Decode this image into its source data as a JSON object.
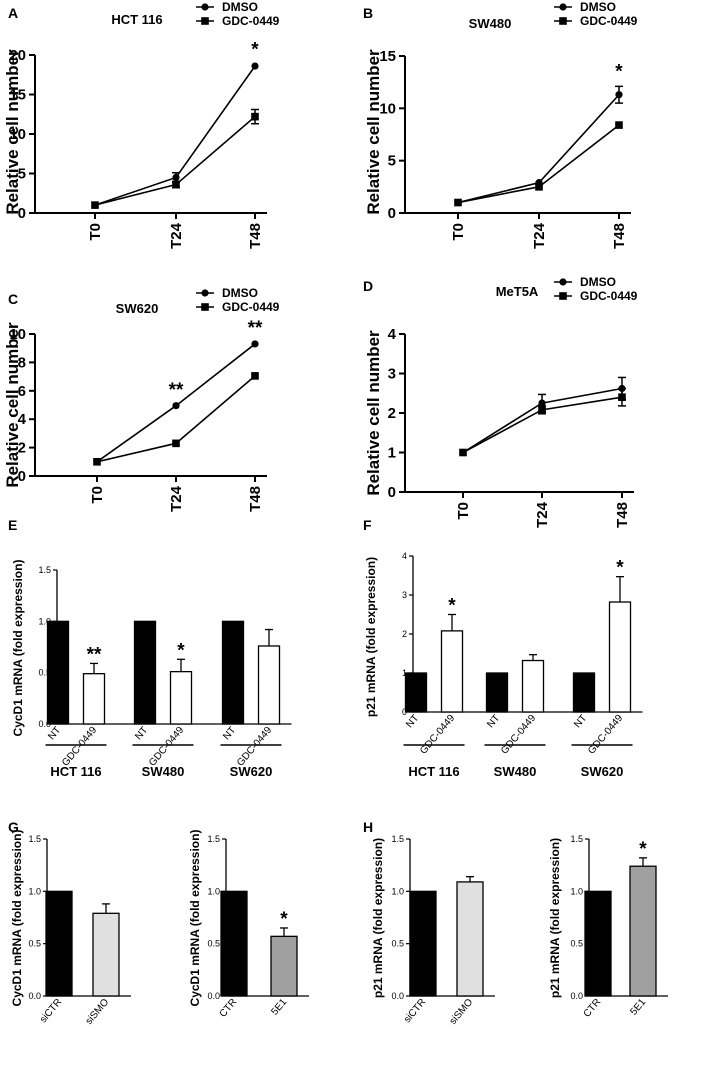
{
  "panels": [
    {
      "id": "A",
      "panel_label": "A",
      "chart_data": {
        "type": "line",
        "title": "HCT 116",
        "xlabel": "",
        "ylabel": "Relative cell number",
        "categories": [
          "T0",
          "T24",
          "T48"
        ],
        "ylim": [
          0,
          20
        ],
        "yticks": [
          "0",
          "5",
          "10",
          "15",
          "20"
        ],
        "series": [
          {
            "name": "DMSO",
            "marker": "circle",
            "values": [
              1,
              4.5,
              18.6
            ],
            "errors": [
              0.1,
              0.6,
              0.2
            ]
          },
          {
            "name": "GDC-0449",
            "marker": "square",
            "values": [
              1,
              3.6,
              12.2
            ],
            "errors": [
              0.1,
              0.4,
              0.9
            ]
          }
        ],
        "annotations": [
          {
            "category": "T48",
            "text": "*"
          }
        ]
      }
    },
    {
      "id": "B",
      "panel_label": "B",
      "chart_data": {
        "type": "line",
        "title": "SW480",
        "xlabel": "",
        "ylabel": "Relative cell number",
        "categories": [
          "T0",
          "T24",
          "T48"
        ],
        "ylim": [
          0,
          15
        ],
        "yticks": [
          "0",
          "5",
          "10",
          "15"
        ],
        "series": [
          {
            "name": "DMSO",
            "marker": "circle",
            "values": [
              1,
              2.9,
              11.3
            ],
            "errors": [
              0.05,
              0.15,
              0.8
            ]
          },
          {
            "name": "GDC-0449",
            "marker": "square",
            "values": [
              1,
              2.5,
              8.4
            ],
            "errors": [
              0.05,
              0.15,
              0.15
            ]
          }
        ],
        "annotations": [
          {
            "category": "T48",
            "text": "*"
          }
        ]
      }
    },
    {
      "id": "C",
      "panel_label": "C",
      "chart_data": {
        "type": "line",
        "title": "SW620",
        "xlabel": "",
        "ylabel": "Relative cell number",
        "categories": [
          "T0",
          "T24",
          "T48"
        ],
        "ylim": [
          0,
          10
        ],
        "yticks": [
          "0",
          "2",
          "4",
          "6",
          "8",
          "10"
        ],
        "series": [
          {
            "name": "DMSO",
            "marker": "circle",
            "values": [
              1,
              4.95,
              9.3
            ],
            "errors": [
              0.05,
              0.05,
              0.05
            ]
          },
          {
            "name": "GDC-0449",
            "marker": "square",
            "values": [
              1,
              2.3,
              7.05
            ],
            "errors": [
              0.05,
              0.05,
              0.05
            ]
          }
        ],
        "annotations": [
          {
            "category": "T24",
            "text": "**"
          },
          {
            "category": "T48",
            "text": "**"
          }
        ]
      }
    },
    {
      "id": "D",
      "panel_label": "D",
      "chart_data": {
        "type": "line",
        "title": "MeT5A",
        "xlabel": "",
        "ylabel": "Relative cell number",
        "categories": [
          "T0",
          "T24",
          "T48"
        ],
        "ylim": [
          0,
          4
        ],
        "yticks": [
          "0",
          "1",
          "2",
          "3",
          "4"
        ],
        "series": [
          {
            "name": "DMSO",
            "marker": "circle",
            "values": [
              1,
              2.25,
              2.62
            ],
            "errors": [
              0.03,
              0.22,
              0.28
            ]
          },
          {
            "name": "GDC-0449",
            "marker": "square",
            "values": [
              1,
              2.08,
              2.4
            ],
            "errors": [
              0.03,
              0.1,
              0.22
            ]
          }
        ],
        "annotations": []
      }
    },
    {
      "id": "E",
      "panel_label": "E",
      "chart_data": {
        "type": "bar",
        "title": "",
        "xlabel": "",
        "ylabel": "CycD1 mRNA (fold expression)",
        "ylim": [
          0,
          1.5
        ],
        "yticks": [
          "0.0",
          "0.5",
          "1.0",
          "1.5"
        ],
        "groups": [
          {
            "name": "HCT 116",
            "bars": [
              {
                "label": "NT",
                "value": 1.0,
                "error": 0,
                "fill": "#000000",
                "sig": ""
              },
              {
                "label": "GDC-0449",
                "value": 0.49,
                "error": 0.1,
                "fill": "#ffffff",
                "sig": "**"
              }
            ]
          },
          {
            "name": "SW480",
            "bars": [
              {
                "label": "NT",
                "value": 1.0,
                "error": 0,
                "fill": "#000000",
                "sig": ""
              },
              {
                "label": "GDC-0449",
                "value": 0.51,
                "error": 0.12,
                "fill": "#ffffff",
                "sig": "*"
              }
            ]
          },
          {
            "name": "SW620",
            "bars": [
              {
                "label": "NT",
                "value": 1.0,
                "error": 0,
                "fill": "#000000",
                "sig": ""
              },
              {
                "label": "GDC-0449",
                "value": 0.76,
                "error": 0.16,
                "fill": "#ffffff",
                "sig": ""
              }
            ]
          }
        ]
      }
    },
    {
      "id": "F",
      "panel_label": "F",
      "chart_data": {
        "type": "bar",
        "title": "",
        "xlabel": "",
        "ylabel": "p21 mRNA (fold expression)",
        "ylim": [
          0,
          4
        ],
        "yticks": [
          "0",
          "1",
          "2",
          "3",
          "4"
        ],
        "groups": [
          {
            "name": "HCT 116",
            "bars": [
              {
                "label": "NT",
                "value": 1.0,
                "error": 0,
                "fill": "#000000",
                "sig": ""
              },
              {
                "label": "GDC-0449",
                "value": 2.08,
                "error": 0.42,
                "fill": "#ffffff",
                "sig": "*"
              }
            ]
          },
          {
            "name": "SW480",
            "bars": [
              {
                "label": "NT",
                "value": 1.0,
                "error": 0,
                "fill": "#000000",
                "sig": ""
              },
              {
                "label": "GDC-0449",
                "value": 1.32,
                "error": 0.15,
                "fill": "#ffffff",
                "sig": ""
              }
            ]
          },
          {
            "name": "SW620",
            "bars": [
              {
                "label": "NT",
                "value": 1.0,
                "error": 0,
                "fill": "#000000",
                "sig": ""
              },
              {
                "label": "GDC-0449",
                "value": 2.82,
                "error": 0.65,
                "fill": "#ffffff",
                "sig": "*"
              }
            ]
          }
        ]
      }
    },
    {
      "id": "G1",
      "panel_label": "G",
      "chart_data": {
        "type": "bar",
        "title": "",
        "xlabel": "",
        "ylabel": "CycD1 mRNA (fold expression)",
        "ylim": [
          0,
          1.5
        ],
        "yticks": [
          "0.0",
          "0.5",
          "1.0",
          "1.5"
        ],
        "groups": [
          {
            "name": "",
            "bars": [
              {
                "label": "siCTR",
                "value": 1.0,
                "error": 0,
                "fill": "#000000",
                "sig": ""
              },
              {
                "label": "siSMO",
                "value": 0.79,
                "error": 0.09,
                "fill": "#e0e0e0",
                "sig": ""
              }
            ]
          }
        ]
      }
    },
    {
      "id": "G2",
      "panel_label": "",
      "chart_data": {
        "type": "bar",
        "title": "",
        "xlabel": "",
        "ylabel": "CycD1 mRNA (fold expression)",
        "ylim": [
          0,
          1.5
        ],
        "yticks": [
          "0.0",
          "0.5",
          "1.0",
          "1.5"
        ],
        "groups": [
          {
            "name": "",
            "bars": [
              {
                "label": "CTR",
                "value": 1.0,
                "error": 0,
                "fill": "#000000",
                "sig": ""
              },
              {
                "label": "5E1",
                "value": 0.57,
                "error": 0.08,
                "fill": "#a0a0a0",
                "sig": "*"
              }
            ]
          }
        ]
      }
    },
    {
      "id": "H1",
      "panel_label": "H",
      "chart_data": {
        "type": "bar",
        "title": "",
        "xlabel": "",
        "ylabel": "p21 mRNA (fold expression)",
        "ylim": [
          0,
          1.5
        ],
        "yticks": [
          "0.0",
          "0.5",
          "1.0",
          "1.5"
        ],
        "groups": [
          {
            "name": "",
            "bars": [
              {
                "label": "siCTR",
                "value": 1.0,
                "error": 0,
                "fill": "#000000",
                "sig": ""
              },
              {
                "label": "siSMO",
                "value": 1.09,
                "error": 0.05,
                "fill": "#e0e0e0",
                "sig": ""
              }
            ]
          }
        ]
      }
    },
    {
      "id": "H2",
      "panel_label": "",
      "chart_data": {
        "type": "bar",
        "title": "",
        "xlabel": "",
        "ylabel": "p21 mRNA (fold expression)",
        "ylim": [
          0,
          1.5
        ],
        "yticks": [
          "0.0",
          "0.5",
          "1.0",
          "1.5"
        ],
        "groups": [
          {
            "name": "",
            "bars": [
              {
                "label": "CTR",
                "value": 1.0,
                "error": 0,
                "fill": "#000000",
                "sig": ""
              },
              {
                "label": "5E1",
                "value": 1.24,
                "error": 0.08,
                "fill": "#a0a0a0",
                "sig": "*"
              }
            ]
          }
        ]
      }
    }
  ]
}
